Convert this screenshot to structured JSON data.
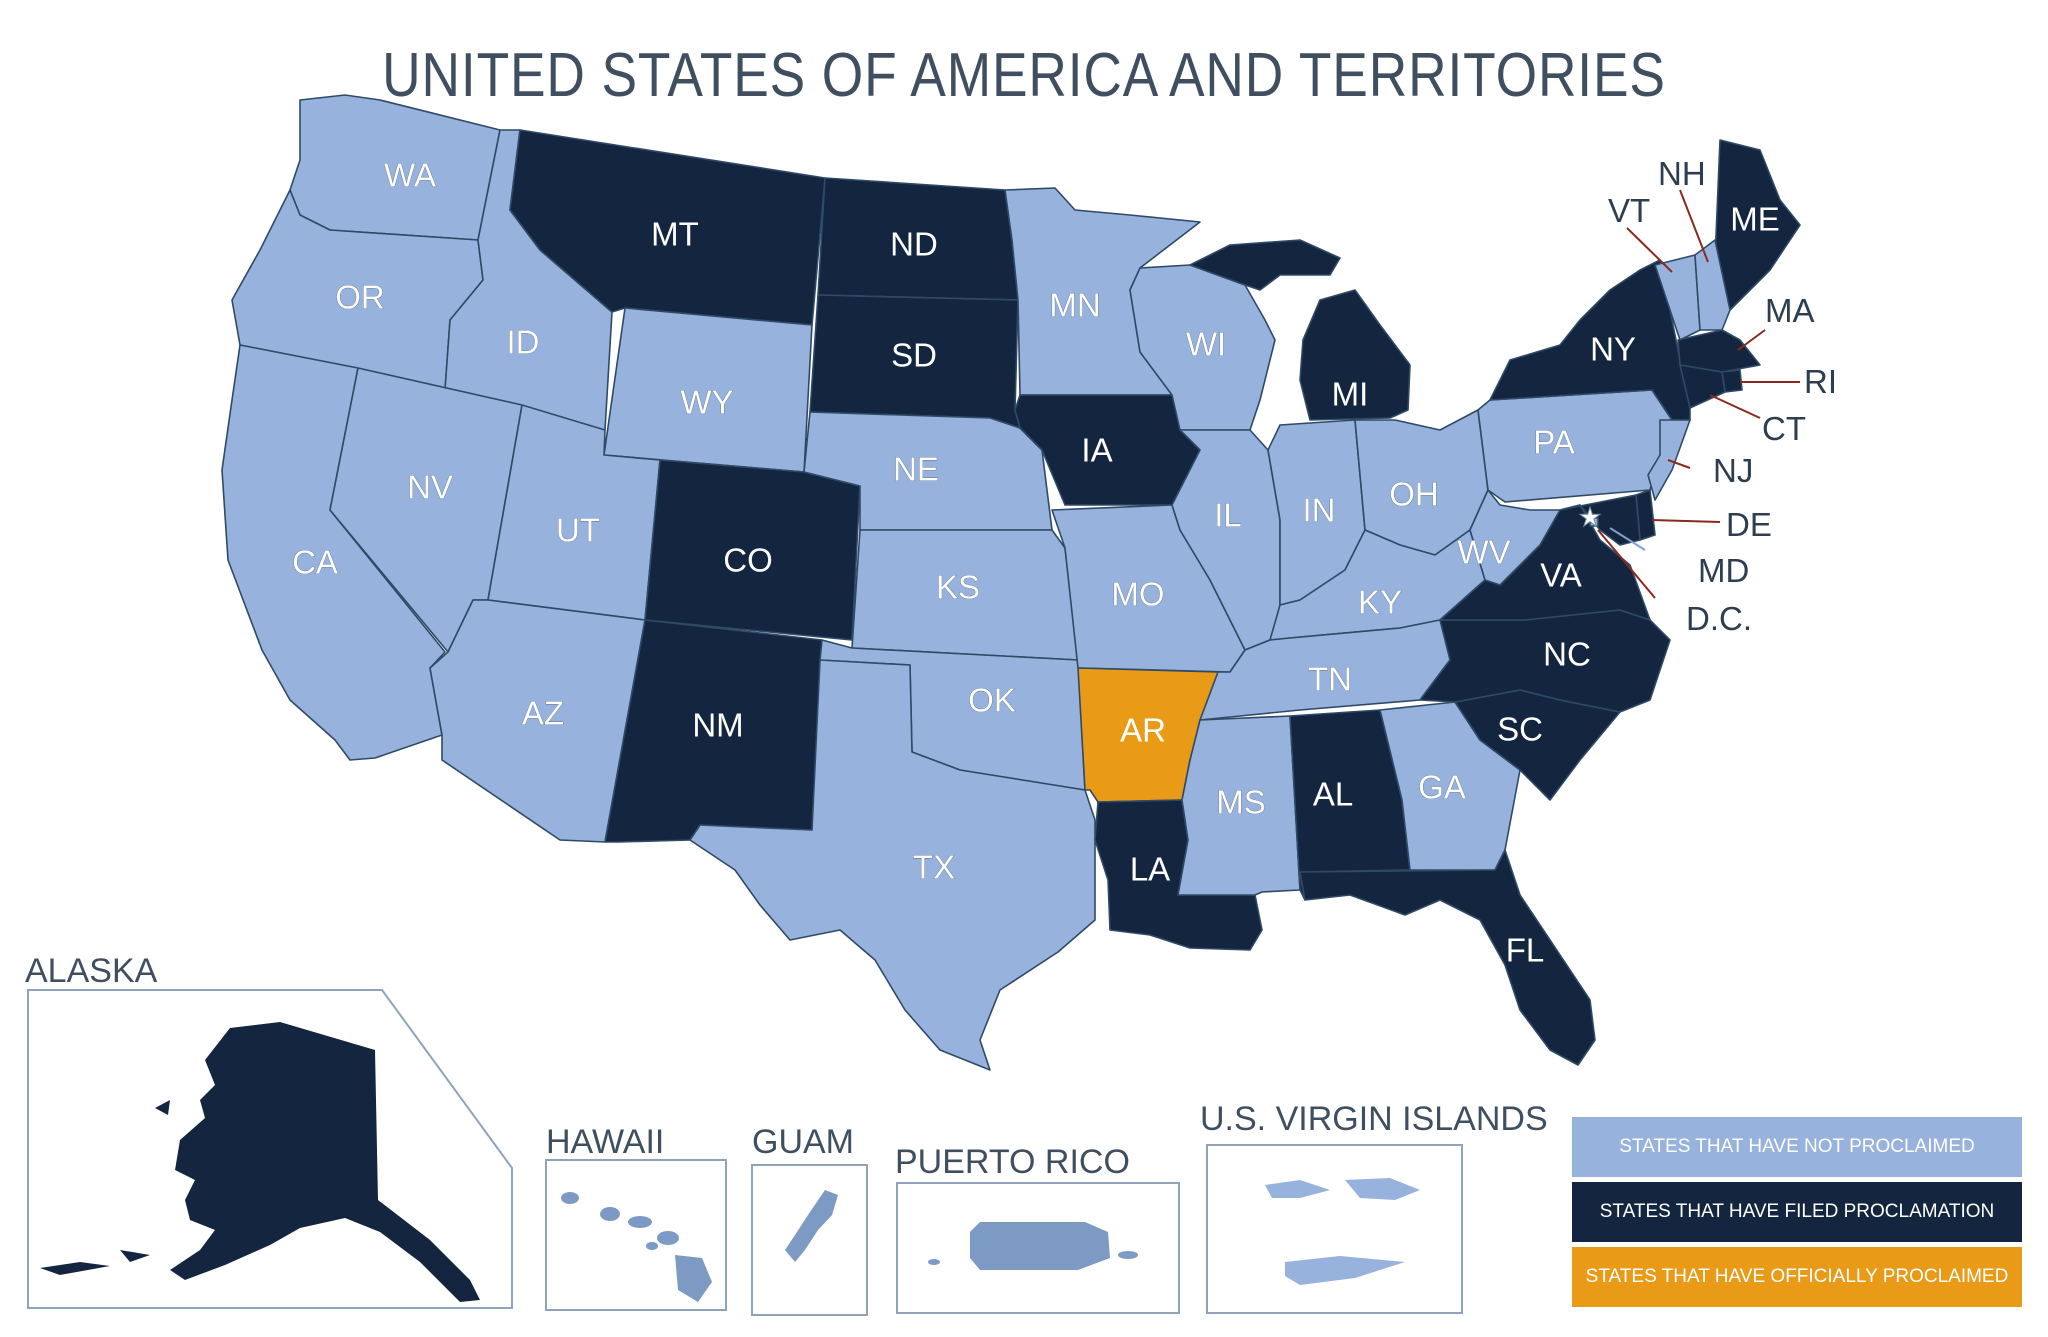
{
  "title": "UNITED STATES OF AMERICA AND TERRITORIES",
  "colors": {
    "not_proclaimed": "#97b2dc",
    "filed_proclamation": "#14253f",
    "officially_proclaimed": "#e99a17",
    "inset_fill": "#7d9ac4"
  },
  "states": {
    "WA": {
      "label": "WA",
      "status": "not_proclaimed"
    },
    "OR": {
      "label": "OR",
      "status": "not_proclaimed"
    },
    "CA": {
      "label": "CA",
      "status": "not_proclaimed"
    },
    "ID": {
      "label": "ID",
      "status": "not_proclaimed"
    },
    "NV": {
      "label": "NV",
      "status": "not_proclaimed"
    },
    "MT": {
      "label": "MT",
      "status": "filed_proclamation"
    },
    "WY": {
      "label": "WY",
      "status": "not_proclaimed"
    },
    "UT": {
      "label": "UT",
      "status": "not_proclaimed"
    },
    "AZ": {
      "label": "AZ",
      "status": "not_proclaimed"
    },
    "CO": {
      "label": "CO",
      "status": "filed_proclamation"
    },
    "NM": {
      "label": "NM",
      "status": "filed_proclamation"
    },
    "ND": {
      "label": "ND",
      "status": "filed_proclamation"
    },
    "SD": {
      "label": "SD",
      "status": "filed_proclamation"
    },
    "NE": {
      "label": "NE",
      "status": "not_proclaimed"
    },
    "KS": {
      "label": "KS",
      "status": "not_proclaimed"
    },
    "OK": {
      "label": "OK",
      "status": "not_proclaimed"
    },
    "TX": {
      "label": "TX",
      "status": "not_proclaimed"
    },
    "MN": {
      "label": "MN",
      "status": "not_proclaimed"
    },
    "IA": {
      "label": "IA",
      "status": "filed_proclamation"
    },
    "MO": {
      "label": "MO",
      "status": "not_proclaimed"
    },
    "AR": {
      "label": "AR",
      "status": "officially_proclaimed"
    },
    "LA": {
      "label": "LA",
      "status": "filed_proclamation"
    },
    "WI": {
      "label": "WI",
      "status": "not_proclaimed"
    },
    "IL": {
      "label": "IL",
      "status": "not_proclaimed"
    },
    "MI": {
      "label": "MI",
      "status": "filed_proclamation"
    },
    "IN": {
      "label": "IN",
      "status": "not_proclaimed"
    },
    "OH": {
      "label": "OH",
      "status": "not_proclaimed"
    },
    "KY": {
      "label": "KY",
      "status": "not_proclaimed"
    },
    "TN": {
      "label": "TN",
      "status": "not_proclaimed"
    },
    "MS": {
      "label": "MS",
      "status": "not_proclaimed"
    },
    "AL": {
      "label": "AL",
      "status": "filed_proclamation"
    },
    "GA": {
      "label": "GA",
      "status": "not_proclaimed"
    },
    "FL": {
      "label": "FL",
      "status": "filed_proclamation"
    },
    "SC": {
      "label": "SC",
      "status": "filed_proclamation"
    },
    "NC": {
      "label": "NC",
      "status": "filed_proclamation"
    },
    "VA": {
      "label": "VA",
      "status": "filed_proclamation"
    },
    "WV": {
      "label": "WV",
      "status": "not_proclaimed"
    },
    "PA": {
      "label": "PA",
      "status": "not_proclaimed"
    },
    "NY": {
      "label": "NY",
      "status": "filed_proclamation"
    },
    "ME": {
      "label": "ME",
      "status": "filed_proclamation"
    },
    "VT": {
      "label": "VT",
      "status": "not_proclaimed"
    },
    "NH": {
      "label": "NH",
      "status": "not_proclaimed"
    },
    "MA": {
      "label": "MA",
      "status": "filed_proclamation"
    },
    "RI": {
      "label": "RI",
      "status": "filed_proclamation"
    },
    "CT": {
      "label": "CT",
      "status": "filed_proclamation"
    },
    "NJ": {
      "label": "NJ",
      "status": "not_proclaimed"
    },
    "DE": {
      "label": "DE",
      "status": "filed_proclamation"
    },
    "MD": {
      "label": "MD",
      "status": "filed_proclamation"
    },
    "DC": {
      "label": "D.C.",
      "status": "not_proclaimed"
    }
  },
  "insets": {
    "alaska": {
      "label": "ALASKA",
      "status": "filed_proclamation"
    },
    "hawaii": {
      "label": "HAWAII"
    },
    "guam": {
      "label": "GUAM"
    },
    "puerto_rico": {
      "label": "PUERTO RICO"
    },
    "virgin_islands": {
      "label": "U.S. VIRGIN ISLANDS"
    }
  },
  "legend": [
    {
      "label": "STATES THAT HAVE NOT PROCLAIMED",
      "color": "#97b2dc"
    },
    {
      "label": "STATES THAT HAVE FILED PROCLAMATION",
      "color": "#14253f"
    },
    {
      "label": "STATES THAT HAVE OFFICIALLY PROCLAIMED",
      "color": "#e99a17"
    }
  ]
}
